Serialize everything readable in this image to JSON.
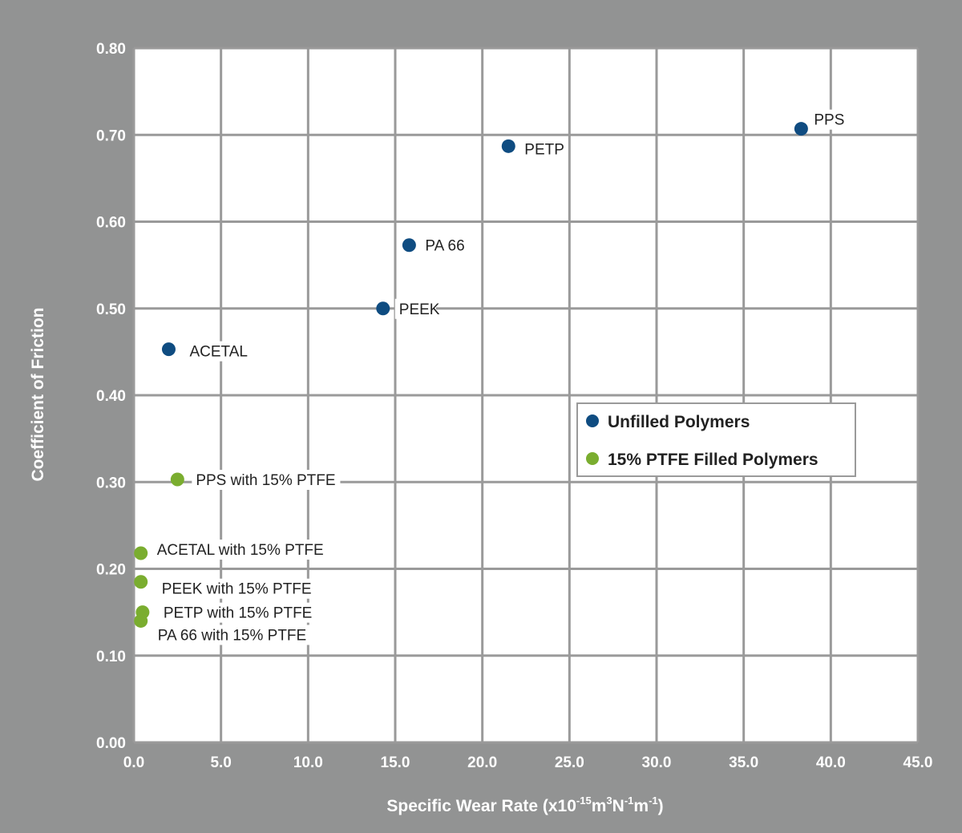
{
  "chart_data": {
    "type": "scatter",
    "xlabel": "Specific Wear Rate (x10",
    "xlabel_sup1": "-15",
    "xlabel_mid1": "m",
    "xlabel_sup2": "3",
    "xlabel_mid2": "N",
    "xlabel_sup3": "-1",
    "xlabel_mid3": "m",
    "xlabel_sup4": "-1",
    "xlabel_end": ")",
    "ylabel": "Coefficient of Friction",
    "xlim": [
      0,
      45
    ],
    "ylim": [
      0,
      0.8
    ],
    "x_ticks": [
      {
        "value": 0,
        "label": "0.0"
      },
      {
        "value": 5,
        "label": "5.0"
      },
      {
        "value": 10,
        "label": "10.0"
      },
      {
        "value": 15,
        "label": "15.0"
      },
      {
        "value": 20,
        "label": "20.0"
      },
      {
        "value": 25,
        "label": "25.0"
      },
      {
        "value": 30,
        "label": "30.0"
      },
      {
        "value": 35,
        "label": "35.0"
      },
      {
        "value": 40,
        "label": "40.0"
      },
      {
        "value": 45,
        "label": "45.0"
      }
    ],
    "y_ticks": [
      {
        "value": 0,
        "label": "0.00"
      },
      {
        "value": 0.1,
        "label": "0.10"
      },
      {
        "value": 0.2,
        "label": "0.20"
      },
      {
        "value": 0.3,
        "label": "0.30"
      },
      {
        "value": 0.4,
        "label": "0.40"
      },
      {
        "value": 0.5,
        "label": "0.50"
      },
      {
        "value": 0.6,
        "label": "0.60"
      },
      {
        "value": 0.7,
        "label": "0.70"
      },
      {
        "value": 0.8,
        "label": "0.80"
      }
    ],
    "grid": true,
    "legend_position": "right",
    "series": [
      {
        "name": "Unfilled Polymers",
        "color": "#0f4c81",
        "points": [
          {
            "label": "PPS",
            "x": 38.3,
            "y": 0.707
          },
          {
            "label": "PETP",
            "x": 21.5,
            "y": 0.687
          },
          {
            "label": "PA 66",
            "x": 15.8,
            "y": 0.573
          },
          {
            "label": "PEEK",
            "x": 14.3,
            "y": 0.5
          },
          {
            "label": "ACETAL",
            "x": 2.0,
            "y": 0.453
          }
        ]
      },
      {
        "name": "15% PTFE Filled Polymers",
        "color": "#7aad2f",
        "points": [
          {
            "label": "PPS with 15% PTFE",
            "x": 2.5,
            "y": 0.303
          },
          {
            "label": "ACETAL with 15% PTFE",
            "x": 0.4,
            "y": 0.218
          },
          {
            "label": "PEEK with 15% PTFE",
            "x": 0.4,
            "y": 0.185
          },
          {
            "label": "PETP with 15% PTFE",
            "x": 0.5,
            "y": 0.15
          },
          {
            "label": "PA 66 with 15% PTFE",
            "x": 0.4,
            "y": 0.14
          }
        ]
      }
    ]
  }
}
